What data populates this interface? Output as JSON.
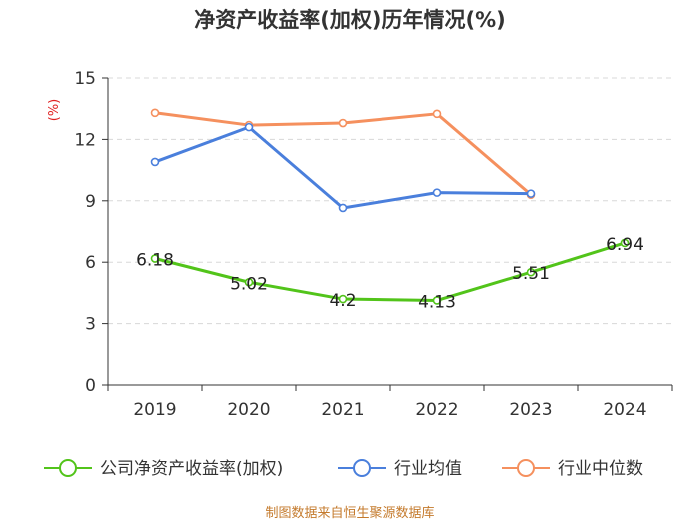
{
  "chart_data": {
    "type": "line",
    "title": "净资产收益率(加权)历年情况(%)",
    "ylabel": "(%)",
    "xlabel": "",
    "categories": [
      "2019",
      "2020",
      "2021",
      "2022",
      "2023",
      "2024"
    ],
    "ylim": [
      0,
      15
    ],
    "yticks": [
      0,
      3,
      6,
      9,
      12,
      15
    ],
    "grid": true,
    "legend_position": "bottom",
    "series": [
      {
        "name": "公司净资产收益率(加权)",
        "color": "#52c41a",
        "values": [
          6.18,
          5.02,
          4.2,
          4.13,
          5.51,
          6.94
        ],
        "labels": [
          "6.18",
          "5.02",
          "4.2",
          "4.13",
          "5.51",
          "6.94"
        ]
      },
      {
        "name": "行业均值",
        "color": "#4a7fdc",
        "values": [
          10.9,
          12.6,
          8.65,
          9.4,
          9.35,
          null
        ]
      },
      {
        "name": "行业中位数",
        "color": "#f5905e",
        "values": [
          13.3,
          12.7,
          12.8,
          13.25,
          9.3,
          null
        ]
      }
    ],
    "source": "制图数据来自恒生聚源数据库"
  }
}
